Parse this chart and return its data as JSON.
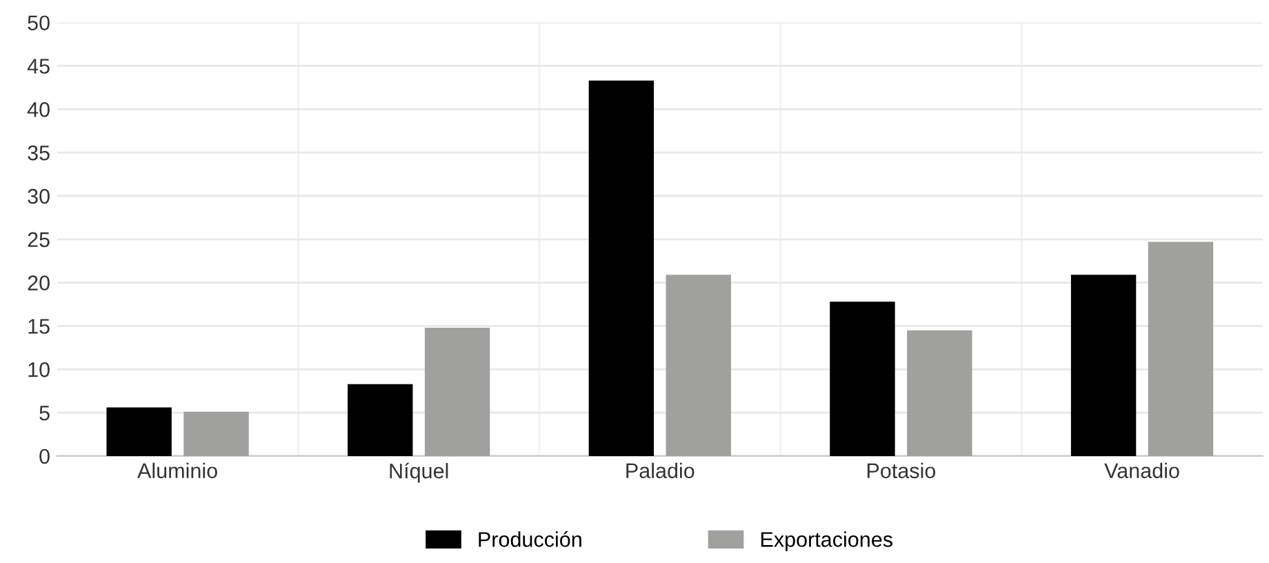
{
  "chart_data": {
    "type": "bar",
    "categories": [
      "Aluminio",
      "Níquel",
      "Paladio",
      "Potasio",
      "Vanadio"
    ],
    "series": [
      {
        "name": "Producción",
        "color": "#000000",
        "values": [
          5.6,
          8.3,
          43.3,
          17.8,
          20.9
        ]
      },
      {
        "name": "Exportaciones",
        "color": "#a0a09e",
        "values": [
          5.1,
          14.8,
          20.9,
          14.5,
          24.7
        ]
      }
    ],
    "ylim": [
      0,
      50
    ],
    "yticks": [
      0,
      5,
      10,
      15,
      20,
      25,
      30,
      35,
      40,
      45,
      50
    ],
    "grid": "y",
    "legend": "bottom"
  }
}
